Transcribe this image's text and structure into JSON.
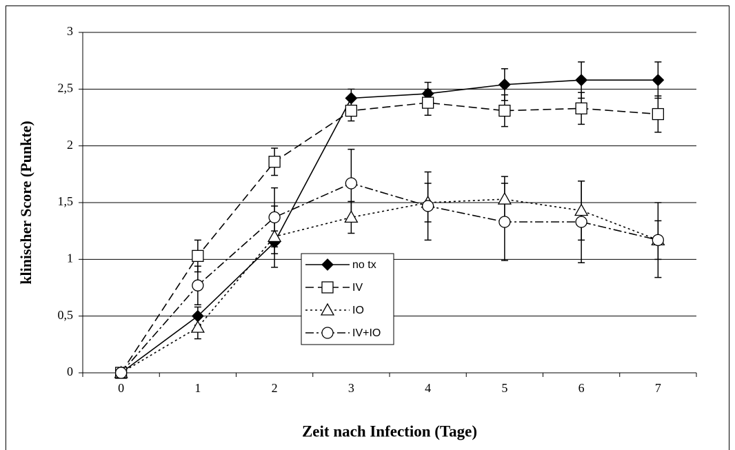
{
  "chart_data": {
    "type": "line",
    "xlabel": "Zeit nach Infection (Tage)",
    "ylabel": "klinischer Score (Punkte)",
    "categories": [
      "0",
      "1",
      "2",
      "3",
      "4",
      "5",
      "6",
      "7"
    ],
    "ylim": [
      0,
      3
    ],
    "yticks": [
      0,
      {
        "value": 0.5,
        "label": "0,5"
      },
      1,
      {
        "value": 1.5,
        "label": "1,5"
      },
      2,
      {
        "value": 2.5,
        "label": "2,5"
      },
      3
    ],
    "grid": true,
    "legend": "center",
    "series": [
      {
        "name": "no tx",
        "color": "#000000",
        "marker": "diamond",
        "dash": "solid",
        "values": [
          0,
          0.5,
          1.15,
          2.42,
          2.46,
          2.54,
          2.58,
          2.58
        ],
        "errors": [
          0,
          0.08,
          0.1,
          0.08,
          0.1,
          0.14,
          0.16,
          0.16
        ]
      },
      {
        "name": "IV",
        "color": "#000000",
        "marker": "square",
        "dash": "dashed",
        "values": [
          0,
          1.03,
          1.86,
          2.31,
          2.38,
          2.31,
          2.33,
          2.28
        ],
        "errors": [
          0,
          0.14,
          0.12,
          0.09,
          0.11,
          0.14,
          0.14,
          0.16
        ]
      },
      {
        "name": "IO",
        "color": "#000000",
        "marker": "triangle",
        "dash": "dotted",
        "values": [
          0,
          0.4,
          1.2,
          1.37,
          1.5,
          1.53,
          1.43,
          1.17
        ],
        "errors": [
          0,
          0.1,
          0.27,
          0.14,
          0.17,
          0.2,
          0.26,
          0.17
        ]
      },
      {
        "name": "IV+IO",
        "color": "#000000",
        "marker": "circle",
        "dash": "dashdot",
        "values": [
          0,
          0.77,
          1.37,
          1.67,
          1.47,
          1.33,
          1.33,
          1.17
        ],
        "errors": [
          0,
          0.17,
          0.26,
          0.3,
          0.3,
          0.34,
          0.36,
          0.33
        ]
      }
    ]
  }
}
